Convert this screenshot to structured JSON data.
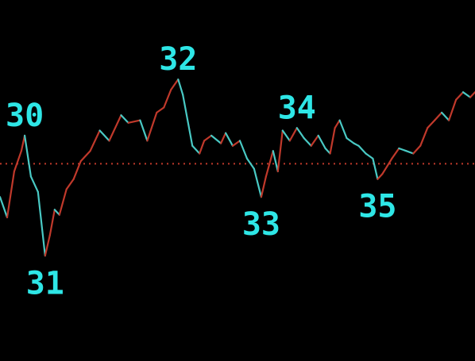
{
  "chart_data": {
    "type": "line",
    "title": "",
    "xlabel": "",
    "ylabel": "",
    "grid": false,
    "legend": "none",
    "xlim": [
      0,
      100
    ],
    "ylim": [
      0,
      100
    ],
    "reference_line": {
      "y": 53,
      "style": "dotted",
      "color": "#c0392b"
    },
    "colors": {
      "background": "#000000",
      "up": "#c0392b",
      "down": "#49c9c4",
      "labels": "#2ee6e6"
    },
    "series": [
      {
        "values": [
          [
            0,
            40
          ],
          [
            1.5,
            32
          ],
          [
            3,
            50
          ],
          [
            4.5,
            58
          ],
          [
            5.2,
            64
          ],
          [
            6.5,
            48
          ],
          [
            8,
            42
          ],
          [
            9.5,
            17
          ],
          [
            10.5,
            25
          ],
          [
            11.5,
            35
          ],
          [
            12.5,
            33
          ],
          [
            14,
            43
          ],
          [
            15.5,
            47
          ],
          [
            17,
            54
          ],
          [
            19,
            58
          ],
          [
            21,
            66
          ],
          [
            23,
            62
          ],
          [
            25.5,
            72
          ],
          [
            27,
            69
          ],
          [
            29.5,
            70
          ],
          [
            31,
            62
          ],
          [
            33,
            73
          ],
          [
            34.5,
            75
          ],
          [
            36,
            82
          ],
          [
            37.5,
            86
          ],
          [
            38.5,
            80
          ],
          [
            40.5,
            60
          ],
          [
            42,
            57
          ],
          [
            43,
            62
          ],
          [
            44.5,
            64
          ],
          [
            46.5,
            61
          ],
          [
            47.5,
            65
          ],
          [
            49,
            60
          ],
          [
            50.5,
            62
          ],
          [
            52,
            55
          ],
          [
            53.5,
            51
          ],
          [
            55,
            40
          ],
          [
            56,
            48
          ],
          [
            57.5,
            58
          ],
          [
            58.5,
            50
          ],
          [
            59.5,
            66
          ],
          [
            61,
            62
          ],
          [
            62.5,
            67
          ],
          [
            64,
            63
          ],
          [
            65.5,
            60
          ],
          [
            67,
            64
          ],
          [
            68.5,
            59
          ],
          [
            69.5,
            57
          ],
          [
            70.5,
            67
          ],
          [
            71.5,
            70
          ],
          [
            73,
            63
          ],
          [
            74.5,
            61
          ],
          [
            75.5,
            60
          ],
          [
            77,
            57
          ],
          [
            78.5,
            55
          ],
          [
            79.5,
            47
          ],
          [
            80.5,
            49
          ],
          [
            81.5,
            52
          ],
          [
            82.5,
            55
          ],
          [
            84,
            59
          ],
          [
            85.5,
            58
          ],
          [
            87,
            57
          ],
          [
            88.5,
            60
          ],
          [
            90,
            67
          ],
          [
            91.5,
            70
          ],
          [
            93,
            73
          ],
          [
            94.5,
            70
          ],
          [
            96,
            78
          ],
          [
            97.5,
            81
          ],
          [
            99,
            79
          ],
          [
            100,
            81
          ]
        ]
      }
    ],
    "annotations": [
      {
        "text": "30",
        "x": 5.2,
        "y": 64
      },
      {
        "text": "31",
        "x": 9.5,
        "y": 17
      },
      {
        "text": "32",
        "x": 37.5,
        "y": 86
      },
      {
        "text": "33",
        "x": 55,
        "y": 40
      },
      {
        "text": "34",
        "x": 62.5,
        "y": 67
      },
      {
        "text": "35",
        "x": 79.5,
        "y": 47
      }
    ]
  }
}
